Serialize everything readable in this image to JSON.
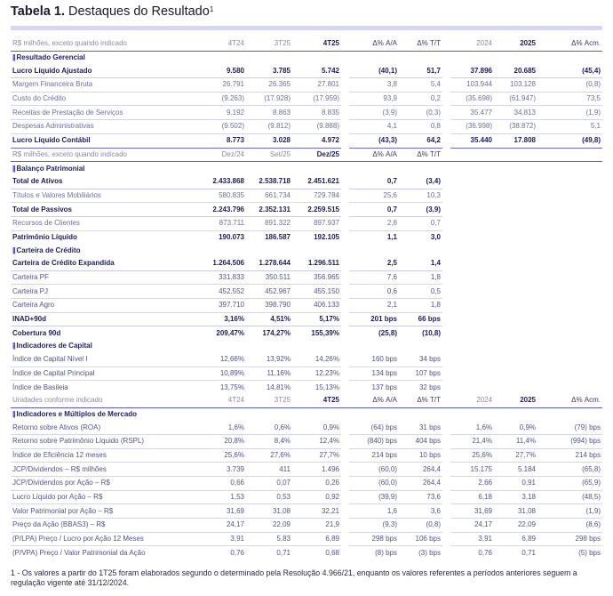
{
  "title": {
    "bold": "Tabela 1.",
    "rest": " Destaques do Resultado",
    "sup": "1"
  },
  "footnote": "1 - Os valores a partir do 1T25 foram elaborados segundo o determinado pela Resolução 4.966/21, enquanto os valores referentes a períodos anteriores seguem a regulação vigente até 31/12/2024.",
  "table": {
    "rows": [
      {
        "type": "hdr",
        "cells": [
          "R$ milhões, exceto quando indicado",
          "4T24",
          "3T25",
          "4T25",
          "Δ% A/A",
          "Δ% T/T",
          "2024",
          "2025",
          "Δ% Acm."
        ]
      },
      {
        "type": "sec",
        "cells": [
          "Resultado Gerencial",
          "",
          "",
          "",
          "",
          "",
          "",
          "",
          ""
        ]
      },
      {
        "type": "bold",
        "cells": [
          "Lucro Líquido Ajustado",
          "9.580",
          "3.785",
          "5.742",
          "(40,1)",
          "51,7",
          "37.896",
          "20.685",
          "(45,4)"
        ]
      },
      {
        "type": "sub",
        "cells": [
          "Margem Financeira Bruta",
          "26.791",
          "26.365",
          "27.801",
          "3,8",
          "5,4",
          "103.944",
          "103.128",
          "(0,8)"
        ]
      },
      {
        "type": "sub",
        "cells": [
          "Custo do Crédito",
          "(9.263)",
          "(17.928)",
          "(17.959)",
          "93,9",
          "0,2",
          "(35.698)",
          "(61.947)",
          "73,5"
        ]
      },
      {
        "type": "sub",
        "cells": [
          "Receitas de Prestação de Serviços",
          "9.192",
          "8.863",
          "8.835",
          "(3,9)",
          "(0,3)",
          "35.477",
          "34.813",
          "(1,9)"
        ]
      },
      {
        "type": "sub",
        "cells": [
          "Despesas Administrativas",
          "(9.502)",
          "(9.812)",
          "(9.888)",
          "4,1",
          "0,8",
          "(36.998)",
          "(38.872)",
          "5,1"
        ]
      },
      {
        "type": "bold",
        "cells": [
          "Lucro Líquido Contábil",
          "8.773",
          "3.028",
          "4.972",
          "(43,3)",
          "64,2",
          "35.440",
          "17.808",
          "(49,8)"
        ]
      },
      {
        "type": "hdr",
        "cells": [
          "R$ milhões, exceto quando indicado",
          "Dez/24",
          "Set/25",
          "Dez/25",
          "Δ% A/A",
          "Δ% T/T",
          "",
          "",
          ""
        ]
      },
      {
        "type": "sec",
        "cells": [
          "Balanço Patrimonial",
          "",
          "",
          "",
          "",
          "",
          "",
          "",
          ""
        ]
      },
      {
        "type": "bold",
        "cells": [
          "Total de Ativos",
          "2.433.868",
          "2.538.718",
          "2.451.621",
          "0,7",
          "(3,4)",
          "",
          "",
          ""
        ]
      },
      {
        "type": "sub",
        "cells": [
          "Títulos e Valores Mobiliários",
          "580.835",
          "661.734",
          "729.784",
          "25,6",
          "10,3",
          "",
          "",
          ""
        ]
      },
      {
        "type": "bold",
        "cells": [
          "Total de Passivos",
          "2.243.796",
          "2.352.131",
          "2.259.515",
          "0,7",
          "(3,9)",
          "",
          "",
          ""
        ]
      },
      {
        "type": "sub",
        "cells": [
          "Recursos de Clientes",
          "873.711",
          "891.322",
          "897.937",
          "2,8",
          "0,7",
          "",
          "",
          ""
        ]
      },
      {
        "type": "bold",
        "cells": [
          "Patrimônio Líquido",
          "190.073",
          "186.587",
          "192.105",
          "1,1",
          "3,0",
          "",
          "",
          ""
        ]
      },
      {
        "type": "sec",
        "cells": [
          "Carteira de Crédito",
          "",
          "",
          "",
          "",
          "",
          "",
          "",
          ""
        ]
      },
      {
        "type": "bold",
        "cells": [
          "Carteira de Crédito Expandida",
          "1.264.506",
          "1.278.644",
          "1.296.511",
          "2,5",
          "1,4",
          "",
          "",
          ""
        ]
      },
      {
        "type": "plain",
        "cells": [
          "Carteira PF",
          "331.833",
          "350.511",
          "356.965",
          "7,6",
          "1,8",
          "",
          "",
          ""
        ]
      },
      {
        "type": "plain",
        "cells": [
          "Carteira PJ",
          "452.552",
          "452.967",
          "455.150",
          "0,6",
          "0,5",
          "",
          "",
          ""
        ]
      },
      {
        "type": "plain",
        "cells": [
          "Carteira Agro",
          "397.710",
          "398.790",
          "406.133",
          "2,1",
          "1,8",
          "",
          "",
          ""
        ]
      },
      {
        "type": "bold",
        "cells": [
          "INAD+90d",
          "3,16%",
          "4,51%",
          "5,17%",
          "201 bps",
          "66 bps",
          "",
          "",
          ""
        ]
      },
      {
        "type": "bold",
        "cells": [
          "Cobertura 90d",
          "209,47%",
          "174,27%",
          "155,39%",
          "(25,8)",
          "(10,8)",
          "",
          "",
          ""
        ]
      },
      {
        "type": "sec",
        "cells": [
          "Indicadores de Capital",
          "",
          "",
          "",
          "",
          "",
          "",
          "",
          ""
        ]
      },
      {
        "type": "plain",
        "cells": [
          "Índice de Capital Nível I",
          "12,66%",
          "13,92%",
          "14,26%",
          "160 bps",
          "34 bps",
          "",
          "",
          ""
        ]
      },
      {
        "type": "plain",
        "cells": [
          "Índice de Capital Principal",
          "10,89%",
          "11,16%",
          "12,23%",
          "134 bps",
          "107 bps",
          "",
          "",
          ""
        ]
      },
      {
        "type": "plain",
        "cells": [
          "Índice de Basileia",
          "13,75%",
          "14,81%",
          "15,13%",
          "137 bps",
          "32 bps",
          "",
          "",
          ""
        ]
      },
      {
        "type": "hdr",
        "cells": [
          "Unidades conforme indicado",
          "4T24",
          "3T25",
          "4T25",
          "Δ% A/A",
          "Δ% T/T",
          "2024",
          "2025",
          "Δ% Acm."
        ]
      },
      {
        "type": "sec",
        "cells": [
          "Indicadores e Múltiplos de Mercado",
          "",
          "",
          "",
          "",
          "",
          "",
          "",
          ""
        ]
      },
      {
        "type": "plain",
        "cells": [
          "Retorno sobre Ativos (ROA)",
          "1,6%",
          "0,6%",
          "0,9%",
          "(64) bps",
          "31 bps",
          "1,6%",
          "0,9%",
          "(79) bps"
        ]
      },
      {
        "type": "plain",
        "cells": [
          "Retorno sobre Patrimônio Líquido (RSPL)",
          "20,8%",
          "8,4%",
          "12,4%",
          "(840) bps",
          "404 bps",
          "21,4%",
          "11,4%",
          "(994) bps"
        ]
      },
      {
        "type": "plain",
        "cells": [
          "Índice de Eficiência 12 meses",
          "25,6%",
          "27,6%",
          "27,7%",
          "214 bps",
          "10 bps",
          "25,6%",
          "27,7%",
          "214 bps"
        ]
      },
      {
        "type": "plain",
        "cells": [
          "JCP/Dividendos – R$ milhões",
          "3.739",
          "411",
          "1.496",
          "(60,0)",
          "264,4",
          "15.175",
          "5.184",
          "(65,8)"
        ]
      },
      {
        "type": "plain",
        "cells": [
          "JCP/Dividendos por Ação – R$",
          "0,66",
          "0,07",
          "0,26",
          "(60,0)",
          "264,4",
          "2,66",
          "0,91",
          "(65,9)"
        ]
      },
      {
        "type": "plain",
        "cells": [
          "Lucro Líquido por Ação – R$",
          "1,53",
          "0,53",
          "0,92",
          "(39,9)",
          "73,6",
          "6,18",
          "3,18",
          "(48,5)"
        ]
      },
      {
        "type": "plain",
        "cells": [
          "Valor Patrimonial por Ação – R$",
          "31,69",
          "31,08",
          "32,21",
          "1,6",
          "3,6",
          "31,69",
          "31,08",
          "(1,9)"
        ]
      },
      {
        "type": "plain",
        "cells": [
          "Preço da Ação (BBAS3) – R$",
          "24,17",
          "22,09",
          "21,9",
          "(9,3)",
          "(0,8)",
          "24,17",
          "22,09",
          "(8,6)"
        ]
      },
      {
        "type": "plain",
        "cells": [
          "(P/LPA) Preço / Lucro por Ação 12 Meses",
          "3,91",
          "5,83",
          "6,89",
          "298 bps",
          "106 bps",
          "3,91",
          "6,89",
          "298 bps"
        ]
      },
      {
        "type": "plain",
        "cells": [
          "(P/VPA) Preço / Valor Patrimonial da Ação",
          "0,76",
          "0,71",
          "0,68",
          "(8) bps",
          "(3) bps",
          "0,76",
          "0,71",
          "(5) bps"
        ]
      }
    ]
  }
}
